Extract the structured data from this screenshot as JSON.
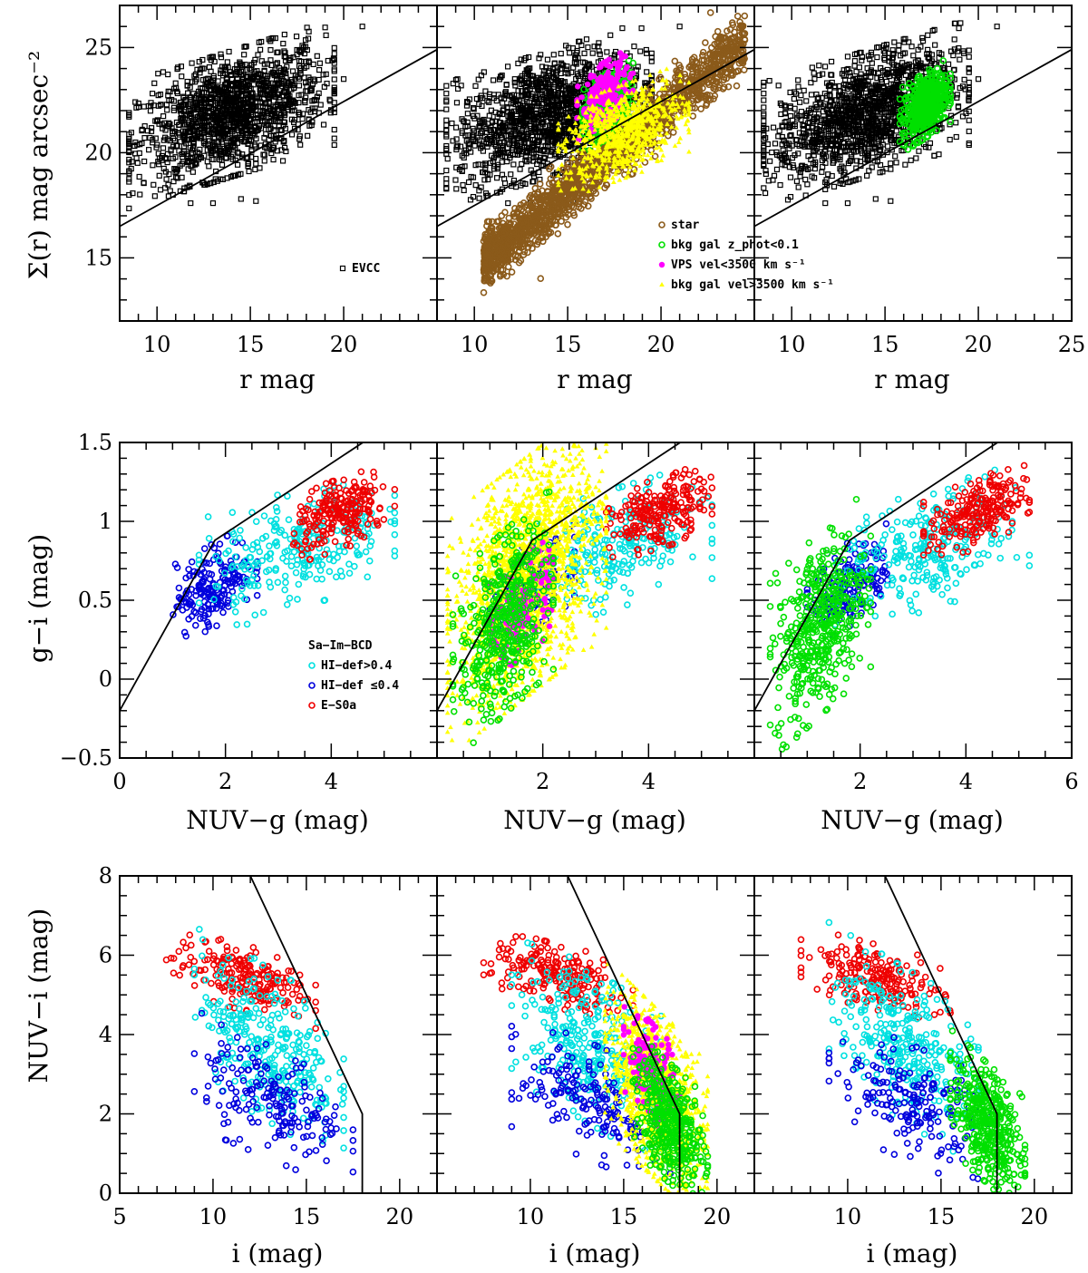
{
  "figure": {
    "rows": [
      {
        "ylabel": "Σ(r) mag arcsec⁻²",
        "xlabel": "r mag",
        "xlim": [
          8,
          25
        ],
        "ylim": [
          12,
          27
        ],
        "xticks": [
          10,
          15,
          20,
          25
        ],
        "yticks": [
          15,
          20,
          25
        ],
        "panels": [
          {
            "show_xtick_labels": [
              10,
              15,
              20
            ],
            "legend": [
              {
                "marker": "square",
                "color": "#000000",
                "label": "EVCC"
              }
            ]
          },
          {
            "show_xtick_labels": [
              10,
              15,
              20
            ],
            "legend": [
              {
                "marker": "circle",
                "color": "#8B5A1A",
                "label": "star"
              },
              {
                "marker": "circle",
                "color": "#00E000",
                "label": "bkg gal z_phot<0.1"
              },
              {
                "marker": "dot",
                "color": "#FF00FF",
                "label": "VPS vel<3500 km s⁻¹"
              },
              {
                "marker": "tri",
                "color": "#FFFF00",
                "label": "bkg gal vel>3500 km s⁻¹"
              }
            ]
          },
          {
            "show_xtick_labels": [
              10,
              15,
              20,
              25
            ],
            "legend": []
          }
        ]
      },
      {
        "ylabel": "g−i (mag)",
        "xlabel": "NUV−g (mag)",
        "xlim": [
          0,
          6
        ],
        "ylim": [
          -0.5,
          1.5
        ],
        "xticks": [
          0,
          2,
          4,
          6
        ],
        "yticks": [
          -0.5,
          0,
          0.5,
          1,
          1.5
        ],
        "ytick_text": [
          "−0.5",
          "0",
          "0.5",
          "1",
          "1.5"
        ],
        "panels": [
          {
            "show_xtick_labels": [
              0,
              2,
              4
            ],
            "legend": [
              {
                "marker": "none",
                "color": "#000000",
                "label": "Sa−Im−BCD"
              },
              {
                "marker": "circle",
                "color": "#00E0E0",
                "label": "HI−def>0.4"
              },
              {
                "marker": "circle",
                "color": "#0000DD",
                "label": "HI−def ≤0.4"
              },
              {
                "marker": "circle",
                "color": "#EE0000",
                "label": "E−S0a"
              }
            ]
          },
          {
            "show_xtick_labels": [
              2,
              4
            ],
            "legend": []
          },
          {
            "show_xtick_labels": [
              2,
              4,
              6
            ],
            "legend": []
          }
        ]
      },
      {
        "ylabel": "NUV−i (mag)",
        "xlabel": "i (mag)",
        "xlim": [
          5,
          22
        ],
        "ylim": [
          0,
          8
        ],
        "xticks": [
          5,
          10,
          15,
          20
        ],
        "yticks": [
          0,
          2,
          4,
          6,
          8
        ],
        "panels": [
          {
            "show_xtick_labels": [
              5,
              10,
              15,
              20
            ],
            "legend": []
          },
          {
            "show_xtick_labels": [
              10,
              15,
              20
            ],
            "legend": []
          },
          {
            "show_xtick_labels": [
              10,
              15,
              20
            ],
            "legend": []
          }
        ]
      }
    ]
  },
  "chart_data": [
    {
      "type": "scatter",
      "row": "top",
      "xlabel": "r mag",
      "ylabel": "Σ(r) mag arcsec⁻²",
      "xlim": [
        8,
        25
      ],
      "ylim": [
        12,
        27
      ],
      "boundary_line": {
        "x": [
          8,
          25
        ],
        "y": [
          16.5,
          24.9
        ]
      },
      "series": [
        {
          "name": "EVCC",
          "color": "#000000",
          "marker": "square",
          "panels": [
            1,
            2,
            3
          ],
          "cloud": {
            "x": [
              8.5,
              19.5
            ],
            "y": [
              18.5,
              25.2
            ],
            "n": 1400
          },
          "points": [
            [
              11.8,
              17.6
            ],
            [
              13.0,
              17.6
            ],
            [
              14.5,
              17.8
            ],
            [
              15.3,
              17.7
            ],
            [
              20.0,
              23.5
            ],
            [
              21.0,
              26.0
            ]
          ]
        },
        {
          "name": "star",
          "color": "#8B5A1A",
          "marker": "circle",
          "panels": [
            2
          ],
          "band": {
            "x": [
              10.5,
              24.5
            ],
            "y_at_x0": 14.8,
            "slope": 0.75,
            "width": 1.6,
            "n": 1800
          }
        },
        {
          "name": "bkg gal z_phot<0.1",
          "color": "#00E000",
          "marker": "circle",
          "panels": [
            2,
            3
          ],
          "cloud": {
            "x": [
              15.8,
              18.5
            ],
            "y": [
              20.5,
              24.0
            ],
            "n": 500
          }
        },
        {
          "name": "VPS vel<3500 km s⁻¹",
          "color": "#FF00FF",
          "marker": "dot",
          "panels": [
            2
          ],
          "cloud": {
            "x": [
              15.5,
              18.5
            ],
            "y": [
              21.0,
              24.5
            ],
            "n": 200
          }
        },
        {
          "name": "bkg gal vel>3500 km s⁻¹",
          "color": "#FFFF00",
          "marker": "tri",
          "panels": [
            2
          ],
          "cloud": {
            "x": [
              14.5,
              21.5
            ],
            "y": [
              18.5,
              23.5
            ],
            "n": 800
          }
        }
      ]
    },
    {
      "type": "scatter",
      "row": "middle",
      "xlabel": "NUV−g (mag)",
      "ylabel": "g−i (mag)",
      "xlim": [
        0,
        6
      ],
      "ylim": [
        -0.5,
        1.5
      ],
      "boundary_line": {
        "x": [
          0,
          1.8,
          4.6
        ],
        "y": [
          -0.2,
          0.88,
          1.5
        ]
      },
      "series": [
        {
          "name": "HI−def ≤0.4",
          "color": "#0000DD",
          "marker": "circle",
          "panels": [
            1,
            2,
            3
          ],
          "cloud": {
            "x": [
              1.0,
              2.6
            ],
            "y": [
              0.3,
              0.9
            ],
            "n": 180
          }
        },
        {
          "name": "HI−def>0.4",
          "color": "#00E0E0",
          "marker": "circle",
          "panels": [
            1,
            2,
            3
          ],
          "cloud": {
            "x": [
              1.5,
              5.2
            ],
            "y": [
              0.4,
              1.25
            ],
            "n": 260
          }
        },
        {
          "name": "E−S0a",
          "color": "#EE0000",
          "marker": "circle",
          "panels": [
            1,
            2,
            3
          ],
          "cloud": {
            "x": [
              3.2,
              5.2
            ],
            "y": [
              0.8,
              1.3
            ],
            "n": 220
          }
        },
        {
          "name": "bkg gal vel>3500 km s⁻¹",
          "color": "#FFFF00",
          "marker": "tri",
          "panels": [
            2
          ],
          "cloud": {
            "x": [
              0.2,
              3.2
            ],
            "y": [
              -0.2,
              1.5
            ],
            "n": 2000
          }
        },
        {
          "name": "VPS vel<3500 km s⁻¹",
          "color": "#FF00FF",
          "marker": "dot",
          "panels": [
            2
          ],
          "cloud": {
            "x": [
              1.0,
              2.2
            ],
            "y": [
              0.1,
              0.8
            ],
            "n": 150
          }
        },
        {
          "name": "bkg gal z_phot<0.1",
          "color": "#00E000",
          "marker": "circle",
          "panels": [
            2,
            3
          ],
          "cloud": {
            "x": [
              0.3,
              2.2
            ],
            "y": [
              -0.3,
              1.0
            ],
            "n": 450
          }
        }
      ]
    },
    {
      "type": "scatter",
      "row": "bottom",
      "xlabel": "i (mag)",
      "ylabel": "NUV−i (mag)",
      "xlim": [
        5,
        22
      ],
      "ylim": [
        0,
        8
      ],
      "boundary_line": {
        "x": [
          12,
          18,
          18
        ],
        "y": [
          8,
          2,
          0
        ]
      },
      "series": [
        {
          "name": "E−S0a",
          "color": "#EE0000",
          "marker": "circle",
          "panels": [
            1,
            2,
            3
          ],
          "cloud": {
            "x": [
              7.5,
              15.5
            ],
            "y": [
              4.5,
              6.4
            ],
            "n": 200
          }
        },
        {
          "name": "HI−def>0.4",
          "color": "#00E0E0",
          "marker": "circle",
          "panels": [
            1,
            2,
            3
          ],
          "cloud": {
            "x": [
              9.0,
              17.0
            ],
            "y": [
              1.5,
              6.0
            ],
            "n": 300
          }
        },
        {
          "name": "HI−def ≤0.4",
          "color": "#0000DD",
          "marker": "circle",
          "panels": [
            1,
            2,
            3
          ],
          "cloud": {
            "x": [
              9.0,
              17.5
            ],
            "y": [
              0.6,
              4.0
            ],
            "n": 180
          }
        },
        {
          "name": "bkg gal vel>3500 km s⁻¹",
          "color": "#FFFF00",
          "marker": "tri",
          "panels": [
            2
          ],
          "cloud": {
            "x": [
              14.0,
              19.5
            ],
            "y": [
              0.0,
              5.0
            ],
            "n": 1200
          }
        },
        {
          "name": "VPS vel<3500 km s⁻¹",
          "color": "#FF00FF",
          "marker": "dot",
          "panels": [
            2
          ],
          "cloud": {
            "x": [
              15.0,
              18.0
            ],
            "y": [
              1.5,
              4.5
            ],
            "n": 150
          }
        },
        {
          "name": "bkg gal z_phot<0.1",
          "color": "#00E000",
          "marker": "circle",
          "panels": [
            2,
            3
          ],
          "cloud": {
            "x": [
              15.5,
              19.5
            ],
            "y": [
              0.0,
              3.5
            ],
            "n": 400
          }
        }
      ]
    }
  ]
}
